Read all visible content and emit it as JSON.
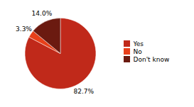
{
  "chart_data": {
    "type": "pie",
    "categories": [
      "Yes",
      "No",
      "Don't know"
    ],
    "values": [
      82.7,
      3.3,
      14.0
    ],
    "value_labels": [
      "82.7%",
      "3.3%",
      "14.0%"
    ],
    "colors": [
      "#c0291a",
      "#e8401a",
      "#6b1a10"
    ],
    "data_labels": true,
    "legend": "right"
  }
}
